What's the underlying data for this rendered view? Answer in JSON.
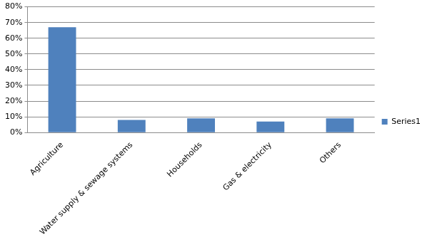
{
  "chart_data": {
    "type": "bar",
    "categories": [
      "Agriculture",
      "Water supply & sewage systems",
      "Households",
      "Gas & electricity",
      "Others"
    ],
    "series": [
      {
        "name": "Series1",
        "color": "#4f81bd",
        "values": [
          67,
          8,
          9,
          7,
          9
        ]
      }
    ],
    "ylim": [
      0,
      80
    ],
    "yticks": [
      {
        "value": 0,
        "label": "0%"
      },
      {
        "value": 10,
        "label": "10%"
      },
      {
        "value": 20,
        "label": "20%"
      },
      {
        "value": 30,
        "label": "30%"
      },
      {
        "value": 40,
        "label": "40%"
      },
      {
        "value": 50,
        "label": "50%"
      },
      {
        "value": 60,
        "label": "60%"
      },
      {
        "value": 70,
        "label": "70%"
      },
      {
        "value": 80,
        "label": "80%"
      }
    ],
    "grid": true,
    "legend": "right"
  }
}
